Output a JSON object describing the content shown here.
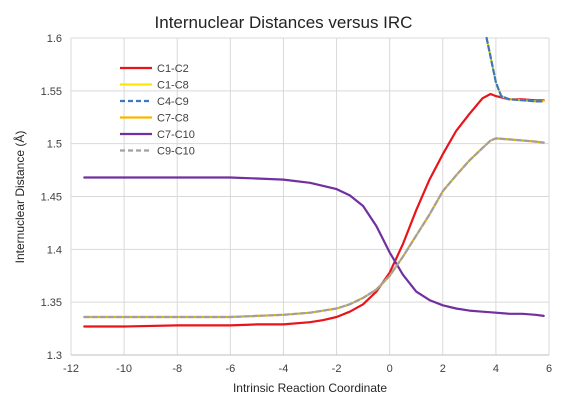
{
  "chart_data": {
    "type": "line",
    "title": "Internuclear Distances versus IRC",
    "xlabel": "Intrinsic Reaction Coordinate",
    "ylabel": "Internuclear Distance (Å)",
    "xlim": [
      -12,
      6
    ],
    "ylim": [
      1.3,
      1.6
    ],
    "xticks": [
      "-12",
      "-10",
      "-8",
      "-6",
      "-4",
      "-2",
      "0",
      "2",
      "4",
      "6"
    ],
    "yticks": [
      "1.3",
      "1.35",
      "1.4",
      "1.45",
      "1.5",
      "1.55",
      "1.6"
    ],
    "grid": true,
    "legend_position": "top-left",
    "series": [
      {
        "name": "C1-C2",
        "color": "#e8141a",
        "dashed": false,
        "x": [
          -11.5,
          -10,
          -8,
          -6,
          -5,
          -4,
          -3,
          -2.5,
          -2,
          -1.5,
          -1,
          -0.5,
          0,
          0.5,
          1,
          1.5,
          2,
          2.5,
          3,
          3.5,
          3.8,
          4,
          4.5,
          5,
          5.5,
          5.8
        ],
        "y": [
          1.327,
          1.327,
          1.328,
          1.328,
          1.329,
          1.329,
          1.331,
          1.333,
          1.336,
          1.341,
          1.348,
          1.36,
          1.378,
          1.405,
          1.437,
          1.466,
          1.49,
          1.512,
          1.528,
          1.543,
          1.547,
          1.545,
          1.542,
          1.542,
          1.541,
          1.541
        ]
      },
      {
        "name": "C1-C8",
        "color": "#ffe600",
        "dashed": false,
        "x": [
          3.65,
          3.8,
          4,
          4.2,
          4.5,
          5,
          5.5,
          5.8
        ],
        "y": [
          1.6,
          1.582,
          1.558,
          1.545,
          1.542,
          1.541,
          1.54,
          1.54
        ]
      },
      {
        "name": "C4-C9",
        "color": "#3a78c2",
        "dashed": true,
        "x": [
          3.65,
          3.8,
          4,
          4.2,
          4.5,
          5,
          5.5,
          5.8
        ],
        "y": [
          1.6,
          1.582,
          1.558,
          1.545,
          1.542,
          1.541,
          1.54,
          1.54
        ]
      },
      {
        "name": "C7-C8",
        "color": "#f5b800",
        "dashed": false,
        "x": [
          -11.5,
          -10,
          -8,
          -6,
          -5,
          -4,
          -3,
          -2,
          -1.5,
          -1,
          -0.5,
          0,
          0.5,
          1,
          1.5,
          2,
          2.5,
          3,
          3.5,
          3.8,
          4,
          4.5,
          5,
          5.5,
          5.8
        ],
        "y": [
          1.336,
          1.336,
          1.336,
          1.336,
          1.337,
          1.338,
          1.34,
          1.344,
          1.348,
          1.354,
          1.362,
          1.375,
          1.393,
          1.413,
          1.433,
          1.455,
          1.47,
          1.484,
          1.496,
          1.503,
          1.505,
          1.504,
          1.503,
          1.502,
          1.501
        ]
      },
      {
        "name": "C7-C10",
        "color": "#7030a0",
        "dashed": false,
        "x": [
          -11.5,
          -10,
          -8,
          -6,
          -5,
          -4,
          -3,
          -2,
          -1.5,
          -1,
          -0.5,
          0,
          0.5,
          1,
          1.5,
          2,
          2.5,
          3,
          3.5,
          4,
          4.5,
          5,
          5.5,
          5.8
        ],
        "y": [
          1.468,
          1.468,
          1.468,
          1.468,
          1.467,
          1.466,
          1.463,
          1.457,
          1.451,
          1.441,
          1.422,
          1.397,
          1.376,
          1.36,
          1.352,
          1.347,
          1.344,
          1.342,
          1.341,
          1.34,
          1.339,
          1.339,
          1.338,
          1.337
        ]
      },
      {
        "name": "C9-C10",
        "color": "#a0a0a0",
        "dashed": true,
        "x": [
          -11.5,
          -10,
          -8,
          -6,
          -5,
          -4,
          -3,
          -2,
          -1.5,
          -1,
          -0.5,
          0,
          0.5,
          1,
          1.5,
          2,
          2.5,
          3,
          3.5,
          3.8,
          4,
          4.5,
          5,
          5.5,
          5.8
        ],
        "y": [
          1.336,
          1.336,
          1.336,
          1.336,
          1.337,
          1.338,
          1.34,
          1.344,
          1.348,
          1.354,
          1.362,
          1.375,
          1.393,
          1.413,
          1.433,
          1.455,
          1.47,
          1.484,
          1.496,
          1.503,
          1.505,
          1.504,
          1.503,
          1.502,
          1.501
        ]
      }
    ]
  }
}
